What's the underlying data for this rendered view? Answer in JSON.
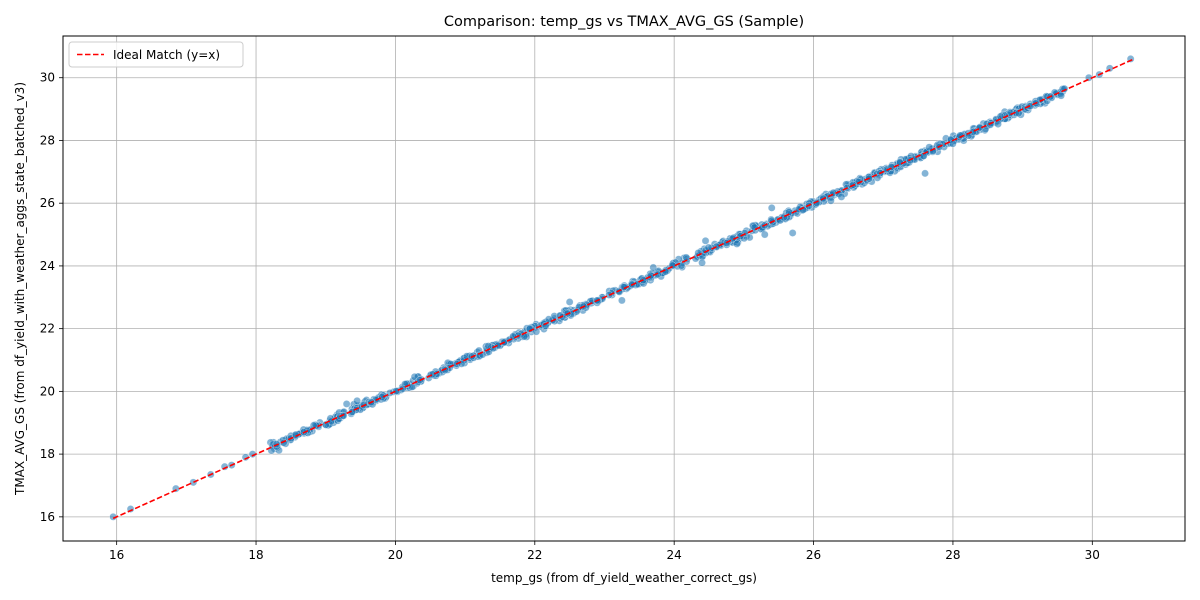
{
  "chart_data": {
    "type": "scatter",
    "title": "Comparison: temp_gs vs TMAX_AVG_GS (Sample)",
    "xlabel": "temp_gs (from df_yield_weather_correct_gs)",
    "ylabel": "TMAX_AVG_GS (from df_yield_with_weather_aggs_state_batched_v3)",
    "xlim": [
      15.23,
      31.33
    ],
    "ylim": [
      15.23,
      31.33
    ],
    "xticks": [
      16,
      18,
      20,
      22,
      24,
      26,
      28,
      30
    ],
    "yticks": [
      16,
      18,
      20,
      22,
      24,
      26,
      28,
      30
    ],
    "grid": true,
    "legend": {
      "placement": "top-left",
      "entries": [
        "Ideal Match (y=x)"
      ]
    },
    "colors": {
      "points": "#1f77b4",
      "ideal_line": "#ff0000"
    },
    "ideal_line": {
      "name": "Ideal Match (y=x)",
      "x": [
        15.95,
        30.6
      ],
      "y": [
        15.95,
        30.6
      ]
    },
    "points_main": {
      "x_start": 18.2,
      "x_end": 29.6,
      "count": 900,
      "scatter_sd": 0.06
    },
    "points_sparse": [
      [
        15.95,
        16.0
      ],
      [
        16.2,
        16.25
      ],
      [
        16.85,
        16.9
      ],
      [
        17.1,
        17.1
      ],
      [
        17.35,
        17.35
      ],
      [
        17.55,
        17.6
      ],
      [
        17.65,
        17.65
      ],
      [
        17.85,
        17.9
      ],
      [
        17.95,
        18.0
      ],
      [
        29.95,
        30.0
      ],
      [
        30.1,
        30.1
      ],
      [
        30.25,
        30.3
      ],
      [
        30.55,
        30.6
      ],
      [
        29.4,
        29.4
      ],
      [
        29.6,
        29.65
      ]
    ],
    "points_outliers": [
      [
        19.3,
        19.6
      ],
      [
        19.45,
        19.7
      ],
      [
        22.5,
        22.85
      ],
      [
        23.25,
        22.9
      ],
      [
        24.4,
        24.1
      ],
      [
        24.9,
        24.7
      ],
      [
        25.3,
        25.0
      ],
      [
        25.4,
        25.85
      ],
      [
        25.7,
        25.05
      ],
      [
        26.4,
        26.2
      ],
      [
        27.6,
        26.95
      ],
      [
        24.45,
        24.8
      ],
      [
        21.85,
        21.75
      ],
      [
        23.7,
        23.95
      ],
      [
        22.2,
        22.3
      ]
    ]
  }
}
